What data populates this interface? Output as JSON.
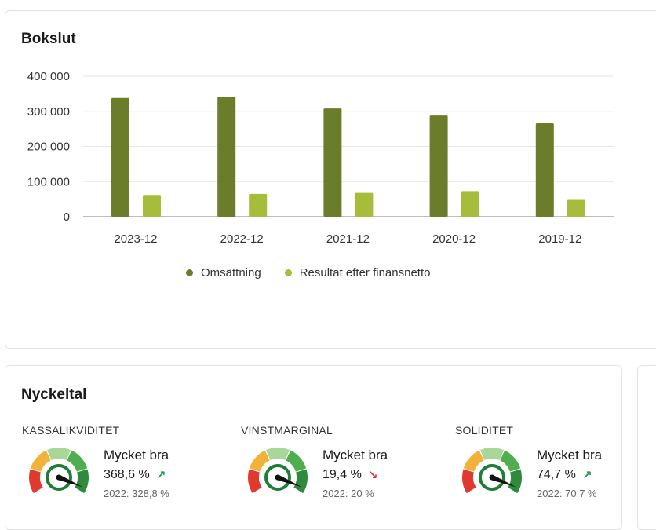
{
  "bokslut": {
    "title": "Bokslut"
  },
  "chart_data": {
    "type": "bar",
    "categories": [
      "2023-12",
      "2022-12",
      "2021-12",
      "2020-12",
      "2019-12"
    ],
    "series": [
      {
        "name": "Omsättning",
        "values": [
          338000,
          341000,
          308000,
          288000,
          266000
        ],
        "color": "#6b7d2a"
      },
      {
        "name": "Resultat efter finansnetto",
        "values": [
          62000,
          65000,
          68000,
          73000,
          48000
        ],
        "color": "#a5bd3a"
      }
    ],
    "yticks": [
      "0",
      "100 000",
      "200 000",
      "300 000",
      "400 000"
    ],
    "ytick_values": [
      0,
      100000,
      200000,
      300000,
      400000
    ],
    "ylim": [
      0,
      400000
    ],
    "grid": true,
    "legend_position": "bottom"
  },
  "nyckeltal": {
    "title": "Nyckeltal",
    "items": [
      {
        "label": "KASSALIKVIDITET",
        "rating": "Mycket bra",
        "value": "368,6 %",
        "trend": "up",
        "trend_color": "#1e9c4a",
        "prev": "2022: 328,8 %"
      },
      {
        "label": "VINSTMARGINAL",
        "rating": "Mycket bra",
        "value": "19,4 %",
        "trend": "down",
        "trend_color": "#d9383a",
        "prev": "2022: 20 %"
      },
      {
        "label": "SOLIDITET",
        "rating": "Mycket bra",
        "value": "74,7 %",
        "trend": "up",
        "trend_color": "#1e9c4a",
        "prev": "2022: 70,7 %"
      }
    ]
  },
  "gauge_colors": [
    "#e03a2f",
    "#f2b23a",
    "#a9d79a",
    "#4fae4e",
    "#2f8a3e"
  ]
}
